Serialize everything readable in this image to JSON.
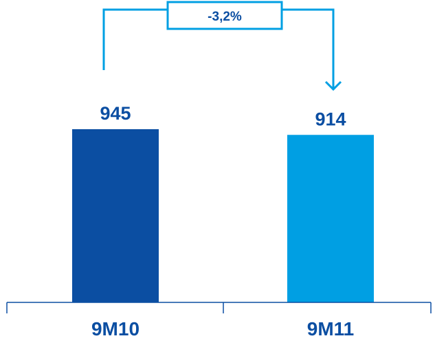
{
  "chart_data": {
    "type": "bar",
    "categories": [
      "9M10",
      "9M11"
    ],
    "values": [
      945,
      914
    ],
    "value_labels": [
      "945",
      "914"
    ],
    "bar_colors": [
      "#0B4EA2",
      "#009FE3"
    ],
    "change_annotation": "-3,2%",
    "accent_color": "#009FE3",
    "text_color": "#0B4EA2",
    "axis_color": "#0B4EA2",
    "ylim": [
      0,
      945
    ]
  }
}
